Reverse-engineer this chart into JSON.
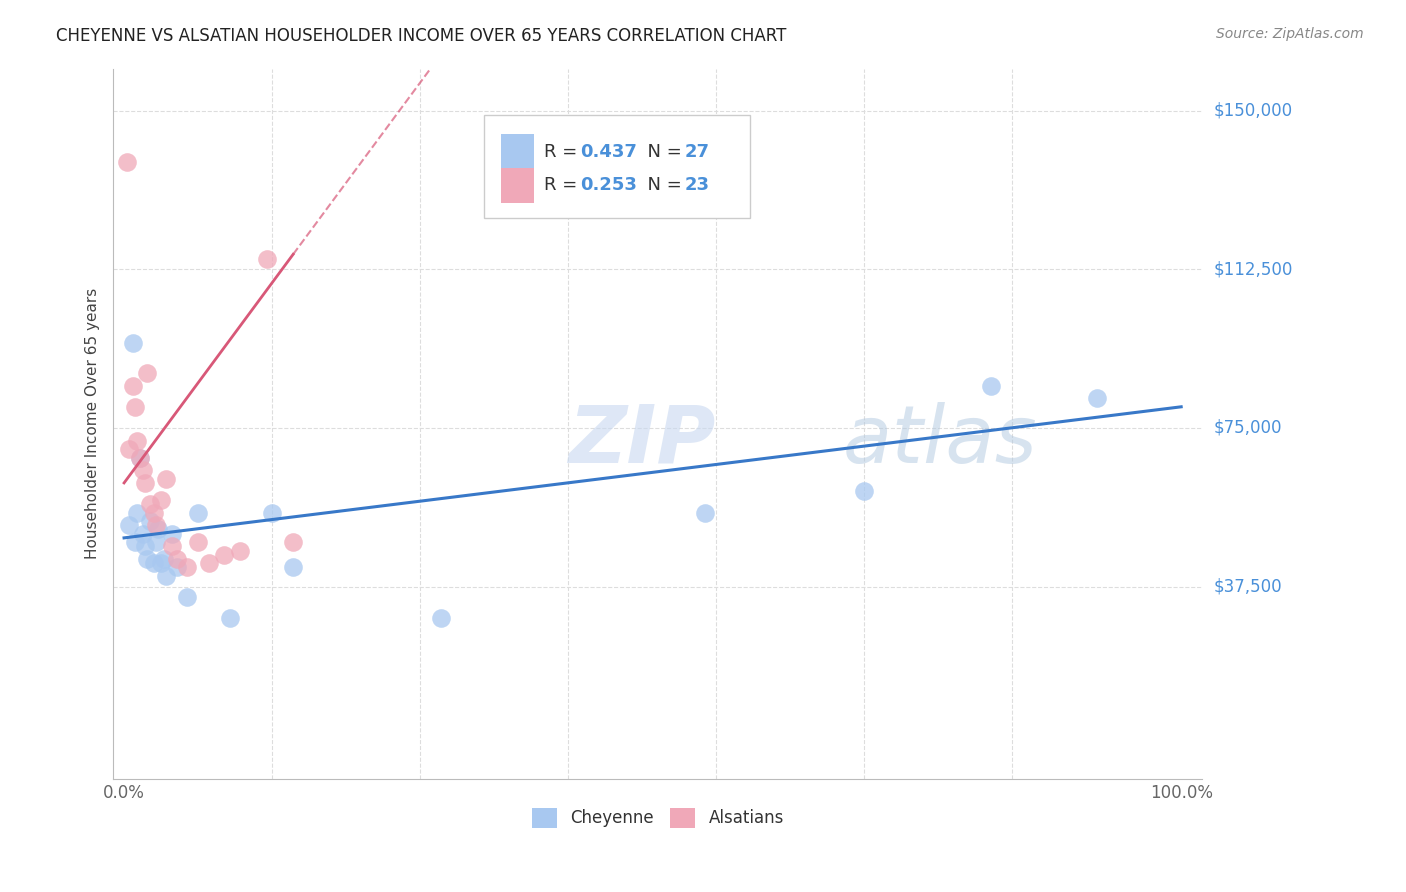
{
  "title": "CHEYENNE VS ALSATIAN HOUSEHOLDER INCOME OVER 65 YEARS CORRELATION CHART",
  "source": "Source: ZipAtlas.com",
  "ylabel": "Householder Income Over 65 years",
  "cheyenne_color": "#A8C8F0",
  "alsatian_color": "#F0A8B8",
  "cheyenne_line_color": "#3878C8",
  "alsatian_line_color": "#D85878",
  "watermark_zip": "ZIP",
  "watermark_atlas": "atlas",
  "watermark_color_zip": "#D0DCF0",
  "watermark_color_atlas": "#B8D0E8",
  "background_color": "#FFFFFF",
  "grid_color": "#DDDDDD",
  "cheyenne_R": 0.437,
  "cheyenne_N": 27,
  "alsatian_R": 0.253,
  "alsatian_N": 23,
  "legend_text_color": "#333333",
  "legend_value_color": "#4A90D9",
  "cheyenne_x": [
    0.5,
    0.8,
    1.0,
    1.2,
    1.5,
    1.8,
    2.0,
    2.2,
    2.5,
    2.8,
    3.0,
    3.2,
    3.5,
    3.8,
    4.0,
    4.5,
    5.0,
    6.0,
    7.0,
    10.0,
    14.0,
    16.0,
    30.0,
    55.0,
    70.0,
    82.0,
    92.0
  ],
  "cheyenne_y": [
    52000,
    95000,
    48000,
    55000,
    68000,
    50000,
    47000,
    44000,
    53000,
    43000,
    48000,
    51000,
    43000,
    44000,
    40000,
    50000,
    42000,
    35000,
    55000,
    30000,
    55000,
    42000,
    30000,
    55000,
    60000,
    85000,
    82000
  ],
  "alsatian_x": [
    0.3,
    0.5,
    0.8,
    1.0,
    1.2,
    1.5,
    1.8,
    2.0,
    2.2,
    2.5,
    2.8,
    3.0,
    3.5,
    4.0,
    4.5,
    5.0,
    6.0,
    7.0,
    8.0,
    9.5,
    11.0,
    13.5,
    16.0
  ],
  "alsatian_y": [
    138000,
    70000,
    85000,
    80000,
    72000,
    68000,
    65000,
    62000,
    88000,
    57000,
    55000,
    52000,
    58000,
    63000,
    47000,
    44000,
    42000,
    48000,
    43000,
    45000,
    46000,
    115000,
    48000
  ]
}
